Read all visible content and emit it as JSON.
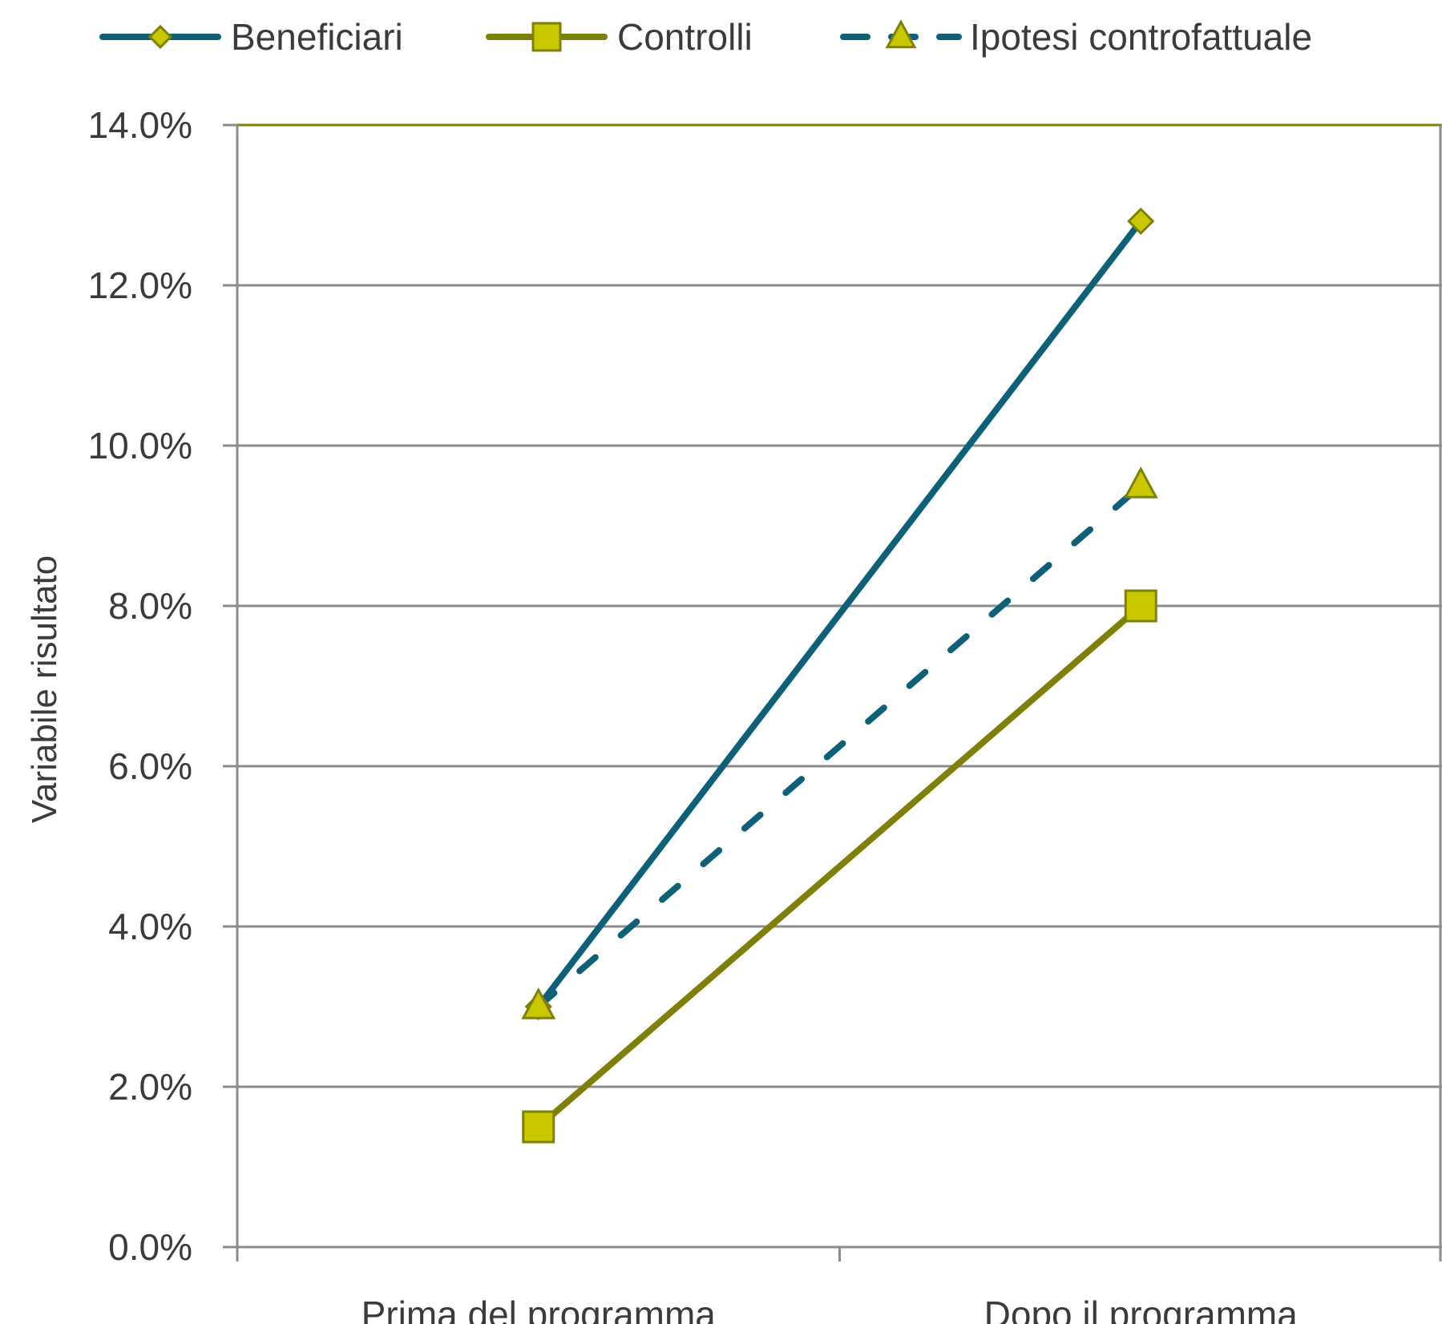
{
  "chart_data": {
    "type": "line",
    "title": "",
    "xlabel": "",
    "ylabel": "Variabile risultato",
    "categories": [
      "Prima del programma",
      "Dopo il programma"
    ],
    "ylim": [
      0,
      0.14
    ],
    "yticks": [
      0,
      0.02,
      0.04,
      0.06,
      0.08,
      0.1,
      0.12,
      0.14
    ],
    "ytick_labels": [
      "0.0%",
      "2.0%",
      "4.0%",
      "6.0%",
      "8.0%",
      "10.0%",
      "12.0%",
      "14.0%"
    ],
    "grid": true,
    "legend_position": "top",
    "series": [
      {
        "name": "Beneficiari",
        "values": [
          0.03,
          0.128
        ],
        "color": "#0e6079",
        "dash": "solid",
        "marker": "diamond"
      },
      {
        "name": "Controlli",
        "values": [
          0.015,
          0.08
        ],
        "color": "#7f800a",
        "dash": "solid",
        "marker": "square"
      },
      {
        "name": "Ipotesi controfattuale",
        "values": [
          0.03,
          0.095
        ],
        "color": "#0e6079",
        "dash": "dashed",
        "marker": "triangle"
      }
    ],
    "colors": {
      "marker_fill": "#c9c800",
      "marker_stroke": "#7f800a",
      "grid": "#8c8c8c",
      "frame_top": "#7f800a"
    }
  }
}
